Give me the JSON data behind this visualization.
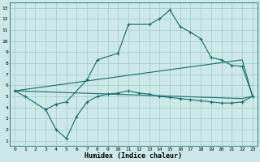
{
  "title": "",
  "xlabel": "Humidex (Indice chaleur)",
  "bg_color": "#cce8e8",
  "line_color": "#1a6b6b",
  "grid_color": "#9ecece",
  "xlim": [
    -0.5,
    23.5
  ],
  "ylim": [
    0.5,
    13.5
  ],
  "xticks": [
    0,
    1,
    2,
    3,
    4,
    5,
    6,
    7,
    8,
    9,
    10,
    11,
    12,
    13,
    14,
    15,
    16,
    17,
    18,
    19,
    20,
    21,
    22,
    23
  ],
  "yticks": [
    1,
    2,
    3,
    4,
    5,
    6,
    7,
    8,
    9,
    10,
    11,
    12,
    13
  ],
  "line1_x": [
    0,
    1,
    3,
    4,
    5,
    7,
    8,
    10,
    11,
    13,
    14,
    15,
    16,
    17,
    18,
    19,
    20,
    21,
    22,
    23
  ],
  "line1_y": [
    5.5,
    5.0,
    3.8,
    4.3,
    4.5,
    6.5,
    8.3,
    8.9,
    11.5,
    11.5,
    12.0,
    12.8,
    11.3,
    10.8,
    10.2,
    8.5,
    8.3,
    7.8,
    7.7,
    5.0
  ],
  "line2_x": [
    0,
    22,
    23
  ],
  "line2_y": [
    5.5,
    8.3,
    5.0
  ],
  "line3_x": [
    0,
    22,
    23
  ],
  "line3_y": [
    5.5,
    4.8,
    5.0
  ],
  "line4_x": [
    3,
    4,
    5,
    6,
    7,
    8,
    9,
    10,
    11,
    12,
    13,
    14,
    15,
    16,
    17,
    18,
    19,
    20,
    21,
    22,
    23
  ],
  "line4_y": [
    3.8,
    2.0,
    1.2,
    3.2,
    4.5,
    5.0,
    5.2,
    5.3,
    5.5,
    5.3,
    5.2,
    5.0,
    4.9,
    4.8,
    4.7,
    4.6,
    4.5,
    4.4,
    4.4,
    4.5,
    5.0
  ]
}
